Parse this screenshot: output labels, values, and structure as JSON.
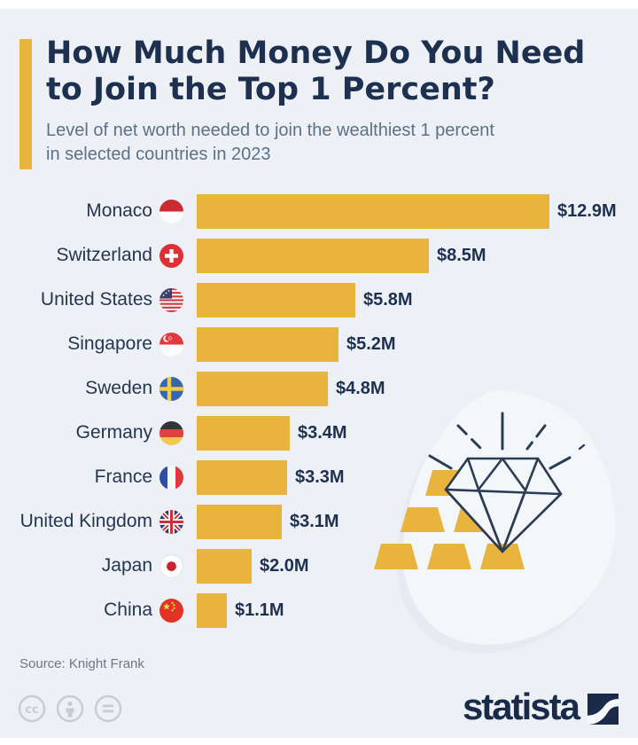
{
  "header": {
    "title": "How Much Money Do You Need\nto Join the Top 1 Percent?",
    "subtitle": "Level of net worth needed to join the wealthiest 1 percent\nin selected countries in 2023"
  },
  "chart_data": {
    "type": "bar",
    "orientation": "horizontal",
    "unit": "million USD net worth",
    "categories": [
      "Monaco",
      "Switzerland",
      "United States",
      "Singapore",
      "Sweden",
      "Germany",
      "France",
      "United Kingdom",
      "Japan",
      "China"
    ],
    "values": [
      12.9,
      8.5,
      5.8,
      5.2,
      4.8,
      3.4,
      3.3,
      3.1,
      2.0,
      1.1
    ],
    "value_labels": [
      "$12.9M",
      "$8.5M",
      "$5.8M",
      "$5.2M",
      "$4.8M",
      "$3.4M",
      "$3.3M",
      "$3.1M",
      "$2.0M",
      "$1.1M"
    ],
    "flags": [
      "monaco",
      "switzerland",
      "us",
      "singapore",
      "sweden",
      "germany",
      "france",
      "uk",
      "japan",
      "china"
    ],
    "bar_color": "#E9B43D",
    "xlim": [
      0,
      13.5
    ],
    "grid": false,
    "legend": "none"
  },
  "colors": {
    "background": "#EDF1F6",
    "accent_gold": "#E9B43D",
    "navy_text": "#1D304F",
    "subtitle_gray": "#5D7087",
    "brand_navy": "#1A2B49"
  },
  "footer": {
    "source": "Source: Knight Frank",
    "license_icons": [
      "cc-icon",
      "attribution-icon",
      "equals-icon"
    ],
    "brand": "statista"
  }
}
